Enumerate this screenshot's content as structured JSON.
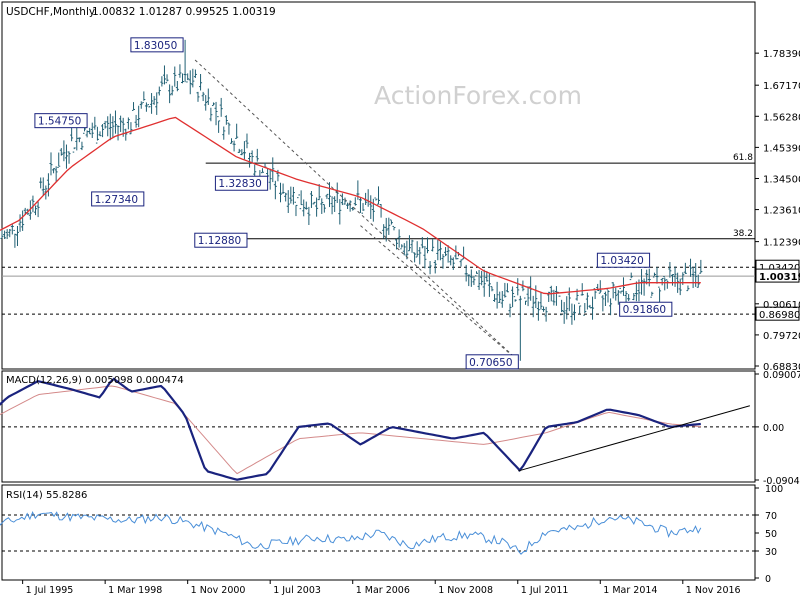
{
  "header": {
    "symbol": "USDCHF,Monthly",
    "ohlc": "1.00832 1.01287 0.99525 1.00319"
  },
  "watermark": "ActionForex.com",
  "colors": {
    "price_bars": "#1f5f73",
    "moving_average": "#e03030",
    "macd_line": "#1a237e",
    "signal_line": "#d48a8a",
    "rsi_line": "#4a8fd8",
    "grid_lines": "#000000",
    "label_box_border": "#1a237e"
  },
  "chart_data": [
    {
      "type": "candlestick",
      "title": "USDCHF,Monthly",
      "ylim": [
        0.6883,
        1.9
      ],
      "y_ticks": [
        "1.78390",
        "1.67170",
        "1.56280",
        "1.45390",
        "1.34500",
        "1.23610",
        "1.12390",
        "0.90610",
        "0.79720",
        "0.68830"
      ],
      "x_ticks": [
        "1 Jul 1995",
        "1 Mar 1998",
        "1 Nov 2000",
        "1 Jul 2003",
        "1 Mar 2006",
        "1 Nov 2008",
        "1 Jul 2011",
        "1 Mar 2014",
        "1 Nov 2016"
      ],
      "current_price": "1.00319",
      "levels": [
        {
          "value": 1.3986,
          "label": "61.8",
          "style": "solid"
        },
        {
          "value": 1.1339,
          "label": "38.2",
          "style": "solid"
        },
        {
          "value": 1.0342,
          "label": "1.03420",
          "style": "dashed"
        },
        {
          "value": 0.8698,
          "label": "0.86980",
          "style": "dashed"
        }
      ],
      "annotations": [
        {
          "text": "1.83050",
          "date": "1 Oct 2000",
          "value": 1.8305
        },
        {
          "text": "1.54750",
          "date": "1 Aug 1997",
          "value": 1.5475
        },
        {
          "text": "1.27340",
          "date": "1 Jun 1999",
          "value": 1.2734
        },
        {
          "text": "1.32830",
          "date": "1 Jun 2003",
          "value": 1.3283
        },
        {
          "text": "1.12880",
          "date": "1 Oct 2002",
          "value": 1.1288
        },
        {
          "text": "0.70650",
          "date": "1 Aug 2011",
          "value": 0.7065
        },
        {
          "text": "1.03420",
          "date": "1 Dec 2014",
          "value": 1.0342
        },
        {
          "text": "0.91860",
          "date": "1 Nov 2015",
          "value": 0.9186
        }
      ],
      "series": [
        {
          "x": [
            "1994-01",
            "1995-01",
            "1996-01",
            "1997-01",
            "1998-01",
            "1999-01",
            "2000-01",
            "2001-01",
            "2002-01",
            "2003-01",
            "2004-01",
            "2005-01",
            "2006-01",
            "2007-01",
            "2008-01",
            "2009-01",
            "2010-01",
            "2011-01",
            "2012-01",
            "2013-01",
            "2014-01",
            "2015-01",
            "2016-01",
            "2017-01",
            "2017-06"
          ],
          "values": [
            1.16,
            1.14,
            1.28,
            1.47,
            1.52,
            1.54,
            1.66,
            1.69,
            1.55,
            1.4,
            1.3,
            1.24,
            1.28,
            1.23,
            1.09,
            1.07,
            1.02,
            0.92,
            0.93,
            0.9,
            0.91,
            0.96,
            0.98,
            0.99,
            1.0032
          ]
        },
        {
          "x": [
            "1994-01",
            "1995-06",
            "1997-01",
            "1998-06",
            "2000-06",
            "2002-06",
            "2004-06",
            "2006-06",
            "2008-06",
            "2010-06",
            "2012-06",
            "2014-06",
            "2015-06",
            "2017-06"
          ],
          "values": [
            1.12,
            1.2,
            1.38,
            1.49,
            1.56,
            1.42,
            1.34,
            1.28,
            1.17,
            1.02,
            0.94,
            0.96,
            0.98,
            0.98
          ]
        }
      ]
    },
    {
      "type": "line",
      "title": "MACD(12,26,9) 0.005098 0.000474",
      "ylim": [
        -0.090435,
        0.090072
      ],
      "y_ticks": [
        "0.090072",
        "0.00",
        "-0.090435"
      ],
      "series": [
        {
          "x": [
            "1994-01",
            "1995-01",
            "1996-01",
            "1997-01",
            "1998-01",
            "1998-06",
            "1999-01",
            "2000-01",
            "2000-10",
            "2001-06",
            "2002-06",
            "2003-06",
            "2004-06",
            "2005-06",
            "2006-06",
            "2007-06",
            "2008-06",
            "2009-06",
            "2010-06",
            "2011-08",
            "2012-06",
            "2013-06",
            "2014-06",
            "2015-06",
            "2016-06",
            "2017-06"
          ],
          "values": [
            0.0,
            0.05,
            0.078,
            0.065,
            0.05,
            0.083,
            0.06,
            0.07,
            0.02,
            -0.075,
            -0.09,
            -0.08,
            0.0,
            0.006,
            -0.03,
            0.0,
            -0.01,
            -0.02,
            -0.01,
            -0.075,
            0.0,
            0.008,
            0.03,
            0.02,
            0.0,
            0.005
          ]
        },
        {
          "x": [
            "1994-01",
            "1996-01",
            "1998-06",
            "2000-06",
            "2002-06",
            "2004-06",
            "2006-06",
            "2008-06",
            "2010-06",
            "2012-06",
            "2014-06",
            "2016-06",
            "2017-06"
          ],
          "values": [
            0.0,
            0.055,
            0.07,
            0.04,
            -0.08,
            -0.02,
            -0.01,
            -0.02,
            -0.03,
            -0.01,
            0.025,
            0.005,
            0.0005
          ]
        }
      ]
    },
    {
      "type": "line",
      "title": "RSI(14) 55.8286",
      "ylim": [
        0,
        100
      ],
      "y_ticks": [
        "100",
        "70",
        "50",
        "30",
        "0"
      ],
      "series": [
        {
          "x": [
            "1994-01",
            "1995-01",
            "1996-01",
            "1997-01",
            "1998-01",
            "1999-01",
            "2000-01",
            "2001-01",
            "2002-01",
            "2003-01",
            "2004-01",
            "2005-01",
            "2006-01",
            "2007-01",
            "2008-01",
            "2009-01",
            "2010-01",
            "2011-01",
            "2011-08",
            "2012-06",
            "2013-06",
            "2014-06",
            "2015-06",
            "2016-06",
            "2017-06"
          ],
          "values": [
            56,
            62,
            72,
            68,
            66,
            64,
            68,
            60,
            50,
            35,
            40,
            45,
            42,
            50,
            36,
            45,
            48,
            40,
            28,
            52,
            55,
            68,
            62,
            50,
            55.8
          ]
        }
      ]
    }
  ]
}
